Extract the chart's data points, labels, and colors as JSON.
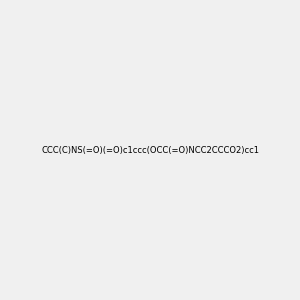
{
  "smiles": "CCC(C)NS(=O)(=O)c1ccc(OCC(=O)NCC2CCCO2)cc1",
  "image_size": 300,
  "background_color": "#f0f0f0",
  "atom_colors": {
    "N": "#4a9090",
    "O": "#ff0000",
    "S": "#cccc00"
  }
}
